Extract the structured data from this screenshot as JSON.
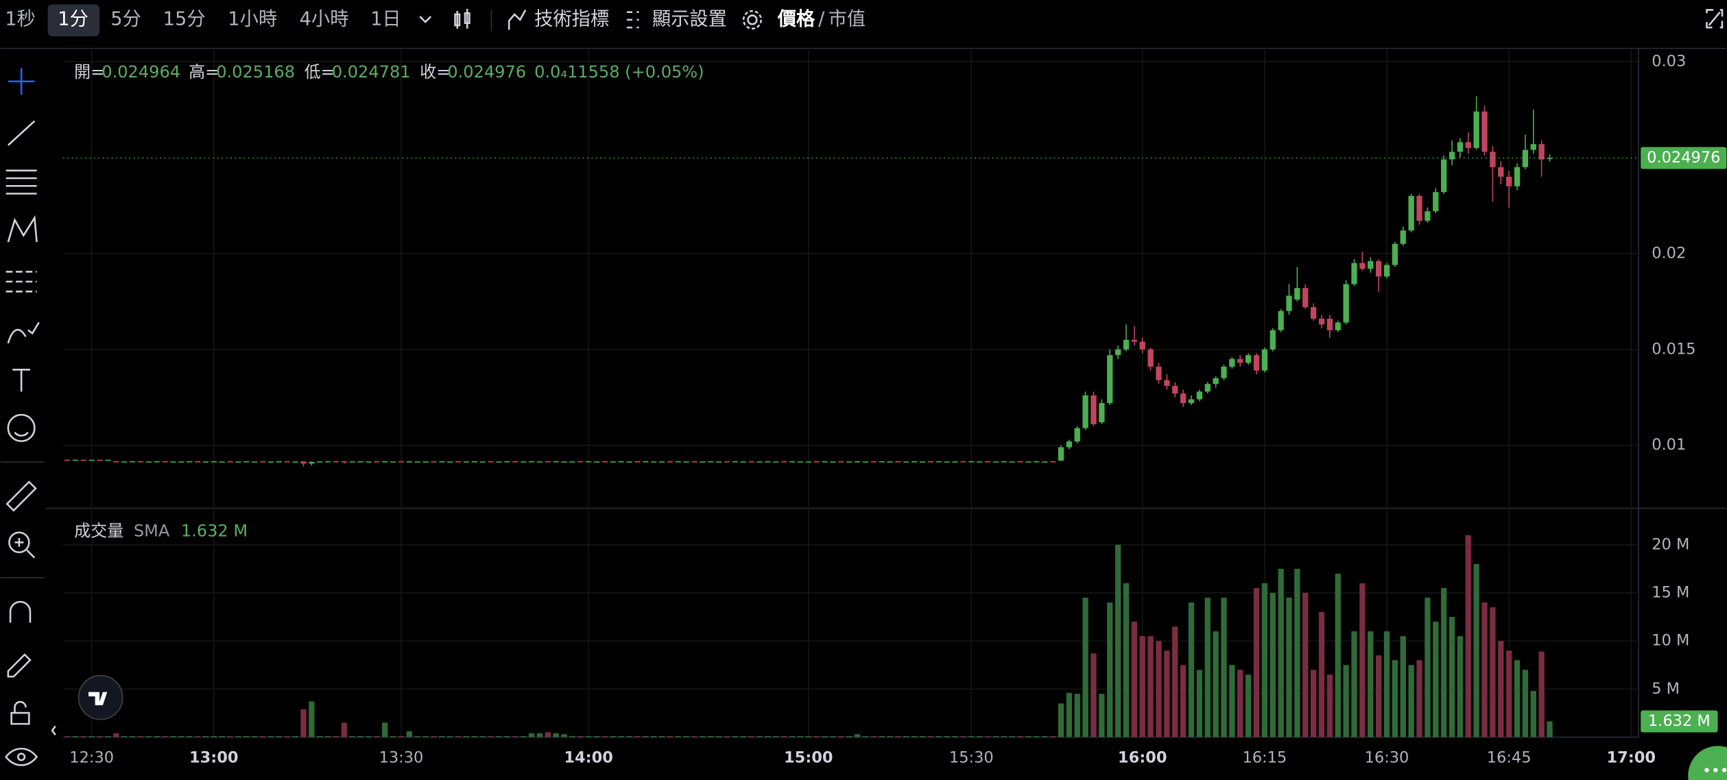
{
  "toolbar": {
    "intervals": [
      "1秒",
      "1分",
      "5分",
      "15分",
      "1小時",
      "4小時",
      "1日"
    ],
    "indicators": "技術指標",
    "display": "顯示設置",
    "price": "價格",
    "sep": "/",
    "mcap": "市值"
  },
  "chart_data": {
    "type": "candlestick",
    "ohlc_labels": {
      "open": "開=",
      "high": "高=",
      "low": "低=",
      "close": "收="
    },
    "change_label": "0.0₄11558 (+0.05%)",
    "up_color": "#4caf50",
    "down_color": "#c2455f",
    "volume_up_color": "#2f6b38",
    "volume_down_color": "#7a2d42",
    "xlim": [
      -0.5,
      192.9
    ],
    "xticks": [
      {
        "value": 3,
        "label": "12:30"
      },
      {
        "value": 18,
        "label": "13:00"
      },
      {
        "value": 41,
        "label": "13:30"
      },
      {
        "value": 64,
        "label": "14:00"
      },
      {
        "value": 91,
        "label": "15:00"
      },
      {
        "value": 111,
        "label": "15:30"
      },
      {
        "value": 132,
        "label": "16:00"
      },
      {
        "value": 147,
        "label": "16:15"
      },
      {
        "value": 162,
        "label": "16:30"
      },
      {
        "value": 177,
        "label": "16:45"
      },
      {
        "value": 192,
        "label": "17:00"
      }
    ],
    "ylim": [
      0.00672,
      0.03063
    ],
    "yticks": [
      0.01,
      0.015,
      0.02,
      0.03
    ],
    "candles": [
      [
        0.00925,
        0.00926,
        0.00924,
        0.00924
      ],
      [
        0.00924,
        0.00925,
        0.00923,
        0.00925
      ],
      [
        0.00925,
        0.00926,
        0.00924,
        0.00924
      ],
      [
        0.00924,
        0.00925,
        0.00923,
        0.00925
      ],
      [
        0.00925,
        0.00926,
        0.00924,
        0.00924
      ],
      [
        0.00924,
        0.00925,
        0.00923,
        0.00925
      ],
      [
        0.00917,
        0.00918,
        0.00915,
        0.00916
      ],
      [
        0.00916,
        0.00916,
        0.00916,
        0.00916
      ],
      [
        0.00916,
        0.00918,
        0.00915,
        0.00917
      ],
      [
        0.00917,
        0.00918,
        0.00915,
        0.00916
      ],
      [
        0.00916,
        0.00916,
        0.00916,
        0.00916
      ],
      [
        0.00916,
        0.00918,
        0.00915,
        0.00917
      ],
      [
        0.00917,
        0.00918,
        0.00915,
        0.00916
      ],
      [
        0.00916,
        0.00916,
        0.00916,
        0.00916
      ],
      [
        0.00916,
        0.00916,
        0.00916,
        0.00916
      ],
      [
        0.00916,
        0.00918,
        0.00915,
        0.00917
      ],
      [
        0.00917,
        0.00918,
        0.00915,
        0.00916
      ],
      [
        0.00916,
        0.00916,
        0.00916,
        0.00916
      ],
      [
        0.00916,
        0.00918,
        0.00915,
        0.00917
      ],
      [
        0.00916,
        0.00916,
        0.00916,
        0.00916
      ],
      [
        0.00917,
        0.00918,
        0.00915,
        0.00916
      ],
      [
        0.00916,
        0.00916,
        0.00916,
        0.00916
      ],
      [
        0.00916,
        0.00918,
        0.00915,
        0.00917
      ],
      [
        0.00916,
        0.00916,
        0.00916,
        0.00916
      ],
      [
        0.00917,
        0.00918,
        0.00915,
        0.00916
      ],
      [
        0.00916,
        0.00916,
        0.00916,
        0.00916
      ],
      [
        0.00916,
        0.00918,
        0.00915,
        0.00917
      ],
      [
        0.00917,
        0.00918,
        0.00915,
        0.00916
      ],
      [
        0.00916,
        0.00916,
        0.00916,
        0.00916
      ],
      [
        0.00916,
        0.00917,
        0.0089,
        0.00905
      ],
      [
        0.00905,
        0.00916,
        0.00895,
        0.00914
      ],
      [
        0.00916,
        0.00916,
        0.00916,
        0.00916
      ],
      [
        0.00916,
        0.00918,
        0.00915,
        0.00917
      ],
      [
        0.00917,
        0.00918,
        0.00915,
        0.00916
      ],
      [
        0.00917,
        0.00918,
        0.00905,
        0.00912
      ],
      [
        0.00916,
        0.00916,
        0.00916,
        0.00916
      ],
      [
        0.00916,
        0.00918,
        0.00915,
        0.00917
      ],
      [
        0.00916,
        0.00916,
        0.00916,
        0.00916
      ],
      [
        0.00917,
        0.00918,
        0.00915,
        0.00916
      ],
      [
        0.00912,
        0.00918,
        0.00911,
        0.00917
      ],
      [
        0.00916,
        0.00916,
        0.00916,
        0.00916
      ],
      [
        0.00917,
        0.00918,
        0.00915,
        0.00916
      ],
      [
        0.00916,
        0.00918,
        0.00915,
        0.00917
      ],
      [
        0.00916,
        0.00916,
        0.00916,
        0.00916
      ],
      [
        0.00916,
        0.00916,
        0.00916,
        0.00916
      ],
      [
        0.00917,
        0.00918,
        0.00915,
        0.00916
      ],
      [
        0.00916,
        0.00918,
        0.00915,
        0.00917
      ],
      [
        0.00916,
        0.00916,
        0.00916,
        0.00916
      ],
      [
        0.00917,
        0.00918,
        0.00915,
        0.00916
      ],
      [
        0.00916,
        0.00916,
        0.00916,
        0.00916
      ],
      [
        0.00916,
        0.00918,
        0.00915,
        0.00917
      ],
      [
        0.00916,
        0.00916,
        0.00916,
        0.00916
      ],
      [
        0.00917,
        0.00918,
        0.00915,
        0.00916
      ],
      [
        0.00916,
        0.00916,
        0.00916,
        0.00916
      ],
      [
        0.00916,
        0.00918,
        0.00915,
        0.00917
      ],
      [
        0.00917,
        0.00918,
        0.00915,
        0.00916
      ],
      [
        0.00916,
        0.00916,
        0.00916,
        0.00916
      ],
      [
        0.00916,
        0.00918,
        0.00915,
        0.00917
      ],
      [
        0.00916,
        0.00916,
        0.00916,
        0.00916
      ],
      [
        0.00917,
        0.00918,
        0.00915,
        0.00916
      ],
      [
        0.00916,
        0.00918,
        0.00915,
        0.00917
      ],
      [
        0.00916,
        0.00916,
        0.00916,
        0.00916
      ],
      [
        0.00916,
        0.00916,
        0.00916,
        0.00916
      ],
      [
        0.00917,
        0.00918,
        0.00915,
        0.00916
      ],
      [
        0.00916,
        0.00918,
        0.00915,
        0.00917
      ],
      [
        0.00916,
        0.00916,
        0.00916,
        0.00916
      ],
      [
        0.00917,
        0.00918,
        0.00915,
        0.00916
      ],
      [
        0.00916,
        0.00916,
        0.00916,
        0.00916
      ],
      [
        0.00916,
        0.00918,
        0.00915,
        0.00917
      ],
      [
        0.00916,
        0.00916,
        0.00916,
        0.00916
      ],
      [
        0.00917,
        0.00918,
        0.00915,
        0.00916
      ],
      [
        0.00916,
        0.00918,
        0.00915,
        0.00917
      ],
      [
        0.00916,
        0.00916,
        0.00916,
        0.00916
      ],
      [
        0.00916,
        0.00916,
        0.00916,
        0.00916
      ],
      [
        0.00917,
        0.00918,
        0.00915,
        0.00916
      ],
      [
        0.00916,
        0.00918,
        0.00915,
        0.00917
      ],
      [
        0.00916,
        0.00916,
        0.00916,
        0.00916
      ],
      [
        0.00917,
        0.00918,
        0.00915,
        0.00916
      ],
      [
        0.00916,
        0.00916,
        0.00916,
        0.00916
      ],
      [
        0.00916,
        0.00918,
        0.00915,
        0.00917
      ],
      [
        0.00916,
        0.00916,
        0.00916,
        0.00916
      ],
      [
        0.00917,
        0.00918,
        0.00915,
        0.00916
      ],
      [
        0.00916,
        0.00918,
        0.00915,
        0.00917
      ],
      [
        0.00916,
        0.00916,
        0.00916,
        0.00916
      ],
      [
        0.00917,
        0.00918,
        0.00915,
        0.00916
      ],
      [
        0.00916,
        0.00916,
        0.00916,
        0.00916
      ],
      [
        0.00916,
        0.00918,
        0.00915,
        0.00917
      ],
      [
        0.00916,
        0.00916,
        0.00916,
        0.00916
      ],
      [
        0.00917,
        0.00918,
        0.00915,
        0.00916
      ],
      [
        0.00916,
        0.00918,
        0.00915,
        0.00917
      ],
      [
        0.00916,
        0.00916,
        0.00916,
        0.00916
      ],
      [
        0.00916,
        0.00916,
        0.00916,
        0.00916
      ],
      [
        0.00917,
        0.00918,
        0.00915,
        0.00916
      ],
      [
        0.00916,
        0.00918,
        0.00915,
        0.00917
      ],
      [
        0.00916,
        0.00916,
        0.00916,
        0.00916
      ],
      [
        0.00917,
        0.00918,
        0.00915,
        0.00916
      ],
      [
        0.00916,
        0.00916,
        0.00916,
        0.00916
      ],
      [
        0.00916,
        0.00918,
        0.00915,
        0.00917
      ],
      [
        0.00916,
        0.00916,
        0.00916,
        0.00916
      ],
      [
        0.00917,
        0.00918,
        0.00915,
        0.00916
      ],
      [
        0.00916,
        0.00918,
        0.00915,
        0.00917
      ],
      [
        0.00916,
        0.00916,
        0.00916,
        0.00916
      ],
      [
        0.00917,
        0.00918,
        0.00915,
        0.00916
      ],
      [
        0.00916,
        0.00916,
        0.00916,
        0.00916
      ],
      [
        0.00916,
        0.00918,
        0.00915,
        0.00917
      ],
      [
        0.00916,
        0.00916,
        0.00916,
        0.00916
      ],
      [
        0.00917,
        0.00918,
        0.00915,
        0.00916
      ],
      [
        0.00916,
        0.00918,
        0.00915,
        0.00917
      ],
      [
        0.00916,
        0.00916,
        0.00916,
        0.00916
      ],
      [
        0.00916,
        0.00916,
        0.00916,
        0.00916
      ],
      [
        0.00917,
        0.00918,
        0.00915,
        0.00916
      ],
      [
        0.00916,
        0.00918,
        0.00915,
        0.00917
      ],
      [
        0.00916,
        0.00916,
        0.00916,
        0.00916
      ],
      [
        0.00917,
        0.00918,
        0.00915,
        0.00916
      ],
      [
        0.00916,
        0.00916,
        0.00916,
        0.00916
      ],
      [
        0.00916,
        0.00918,
        0.00915,
        0.00917
      ],
      [
        0.00916,
        0.00916,
        0.00916,
        0.00916
      ],
      [
        0.00917,
        0.00918,
        0.00915,
        0.00916
      ],
      [
        0.00916,
        0.00916,
        0.00916,
        0.00916
      ],
      [
        0.00916,
        0.00918,
        0.00915,
        0.00917
      ],
      [
        0.00916,
        0.00916,
        0.00916,
        0.00916
      ],
      [
        0.00917,
        0.00918,
        0.00915,
        0.00916
      ],
      [
        0.0092,
        0.01,
        0.0092,
        0.0099
      ],
      [
        0.0099,
        0.0103,
        0.0098,
        0.0102
      ],
      [
        0.0102,
        0.011,
        0.0101,
        0.0109
      ],
      [
        0.0109,
        0.0128,
        0.0108,
        0.0126
      ],
      [
        0.0126,
        0.0128,
        0.011,
        0.0111
      ],
      [
        0.0112,
        0.0124,
        0.0111,
        0.0122
      ],
      [
        0.0122,
        0.015,
        0.0121,
        0.0147
      ],
      [
        0.0147,
        0.0152,
        0.0145,
        0.015
      ],
      [
        0.015,
        0.0163,
        0.0149,
        0.0155
      ],
      [
        0.0155,
        0.0162,
        0.0152,
        0.0154
      ],
      [
        0.0154,
        0.0156,
        0.0148,
        0.015
      ],
      [
        0.015,
        0.0151,
        0.0139,
        0.0141
      ],
      [
        0.0141,
        0.0143,
        0.0132,
        0.0134
      ],
      [
        0.0134,
        0.0137,
        0.0129,
        0.0131
      ],
      [
        0.0131,
        0.0133,
        0.0125,
        0.0127
      ],
      [
        0.0127,
        0.0129,
        0.012,
        0.0122
      ],
      [
        0.0122,
        0.0126,
        0.0121,
        0.0124
      ],
      [
        0.0124,
        0.0129,
        0.0123,
        0.0128
      ],
      [
        0.0128,
        0.0133,
        0.0127,
        0.0132
      ],
      [
        0.0132,
        0.0136,
        0.013,
        0.0135
      ],
      [
        0.0135,
        0.0142,
        0.0134,
        0.0141
      ],
      [
        0.0141,
        0.0146,
        0.014,
        0.0145
      ],
      [
        0.0145,
        0.0147,
        0.0141,
        0.0143
      ],
      [
        0.0143,
        0.0148,
        0.0142,
        0.0147
      ],
      [
        0.0147,
        0.0148,
        0.0137,
        0.0139
      ],
      [
        0.0139,
        0.0151,
        0.0138,
        0.015
      ],
      [
        0.015,
        0.0161,
        0.0149,
        0.016
      ],
      [
        0.016,
        0.0171,
        0.0159,
        0.017
      ],
      [
        0.017,
        0.0184,
        0.0168,
        0.0178
      ],
      [
        0.0176,
        0.0193,
        0.0175,
        0.0182
      ],
      [
        0.0182,
        0.0184,
        0.0171,
        0.0172
      ],
      [
        0.0172,
        0.0174,
        0.0165,
        0.0166
      ],
      [
        0.0166,
        0.0168,
        0.0161,
        0.0163
      ],
      [
        0.0166,
        0.0168,
        0.0156,
        0.016
      ],
      [
        0.016,
        0.0165,
        0.0159,
        0.0164
      ],
      [
        0.0164,
        0.0186,
        0.0163,
        0.0184
      ],
      [
        0.0184,
        0.0197,
        0.0183,
        0.0195
      ],
      [
        0.0195,
        0.0201,
        0.0191,
        0.0192
      ],
      [
        0.0192,
        0.0198,
        0.019,
        0.0196
      ],
      [
        0.0196,
        0.0197,
        0.018,
        0.0188
      ],
      [
        0.0188,
        0.0195,
        0.0187,
        0.0194
      ],
      [
        0.0194,
        0.0206,
        0.0193,
        0.0205
      ],
      [
        0.0205,
        0.0214,
        0.0204,
        0.0212
      ],
      [
        0.0212,
        0.0231,
        0.0211,
        0.023
      ],
      [
        0.023,
        0.0231,
        0.0215,
        0.0217
      ],
      [
        0.0217,
        0.0224,
        0.0216,
        0.0222
      ],
      [
        0.0222,
        0.0234,
        0.0221,
        0.0232
      ],
      [
        0.0232,
        0.0251,
        0.0231,
        0.0249
      ],
      [
        0.0249,
        0.0259,
        0.0246,
        0.0253
      ],
      [
        0.0253,
        0.026,
        0.025,
        0.0258
      ],
      [
        0.0258,
        0.0263,
        0.0252,
        0.0255
      ],
      [
        0.0255,
        0.0282,
        0.0254,
        0.0274
      ],
      [
        0.0274,
        0.0277,
        0.0251,
        0.0253
      ],
      [
        0.0253,
        0.0256,
        0.0227,
        0.0245
      ],
      [
        0.0245,
        0.0248,
        0.0236,
        0.024
      ],
      [
        0.024,
        0.0243,
        0.0224,
        0.0235
      ],
      [
        0.0235,
        0.0247,
        0.0233,
        0.0245
      ],
      [
        0.0245,
        0.0262,
        0.0244,
        0.0254
      ],
      [
        0.0254,
        0.0275,
        0.0252,
        0.0257
      ],
      [
        0.0257,
        0.0259,
        0.024,
        0.0249
      ],
      [
        0.024964,
        0.025168,
        0.024781,
        0.024976
      ]
    ],
    "volume": {
      "name": "成交量",
      "sma_name": "SMA",
      "sma_label": "1.632 M",
      "last_label": "1.632 M",
      "ylim": [
        0,
        23.8
      ],
      "yticks": [
        {
          "value": 5,
          "label": "5 M"
        },
        {
          "value": 10,
          "label": "10 M"
        },
        {
          "value": 15,
          "label": "15 M"
        },
        {
          "value": 20,
          "label": "20 M"
        }
      ],
      "values": [
        0.1,
        0.1,
        0.1,
        0.1,
        0.1,
        0.1,
        0.4,
        0.1,
        0.1,
        0.1,
        0.1,
        0.1,
        0.1,
        0.1,
        0.1,
        0.1,
        0.1,
        0.1,
        0.1,
        0.1,
        0.1,
        0.1,
        0.1,
        0.1,
        0.1,
        0.1,
        0.1,
        0.1,
        0.1,
        2.9,
        3.7,
        0.1,
        0.1,
        0.1,
        1.5,
        0.1,
        0.1,
        0.1,
        0.1,
        1.5,
        0.1,
        0.1,
        0.6,
        0.1,
        0.1,
        0.1,
        0.1,
        0.1,
        0.1,
        0.1,
        0.1,
        0.1,
        0.1,
        0.1,
        0.1,
        0.1,
        0.1,
        0.4,
        0.4,
        0.5,
        0.4,
        0.3,
        0.1,
        0.1,
        0.1,
        0.1,
        0.1,
        0.1,
        0.1,
        0.1,
        0.1,
        0.1,
        0.1,
        0.1,
        0.1,
        0.1,
        0.1,
        0.1,
        0.1,
        0.1,
        0.1,
        0.1,
        0.1,
        0.1,
        0.1,
        0.1,
        0.1,
        0.1,
        0.1,
        0.1,
        0.1,
        0.1,
        0.1,
        0.1,
        0.1,
        0.1,
        0.1,
        0.3,
        0.1,
        0.1,
        0.1,
        0.1,
        0.1,
        0.1,
        0.1,
        0.1,
        0.1,
        0.1,
        0.1,
        0.1,
        0.1,
        0.1,
        0.1,
        0.1,
        0.1,
        0.1,
        0.1,
        0.1,
        0.1,
        0.1,
        0.1,
        0.1,
        3.5,
        4.6,
        4.5,
        14.5,
        8.7,
        4.5,
        14.0,
        20.0,
        16.0,
        12.0,
        10.5,
        10.5,
        10.0,
        9.0,
        11.5,
        7.5,
        14.0,
        7.0,
        14.5,
        11.0,
        14.5,
        7.5,
        7.0,
        6.5,
        15.5,
        16.0,
        15.0,
        17.5,
        14.5,
        17.5,
        15.0,
        7.0,
        13.0,
        6.5,
        17.0,
        7.5,
        11.0,
        16.0,
        11.0,
        8.5,
        11.0,
        8.0,
        10.5,
        7.5,
        8.0,
        14.5,
        12.0,
        15.5,
        12.5,
        10.5,
        21.0,
        18.0,
        14.0,
        13.5,
        10.0,
        9.0,
        8.0,
        7.0,
        4.8,
        8.9,
        1.632
      ]
    }
  }
}
